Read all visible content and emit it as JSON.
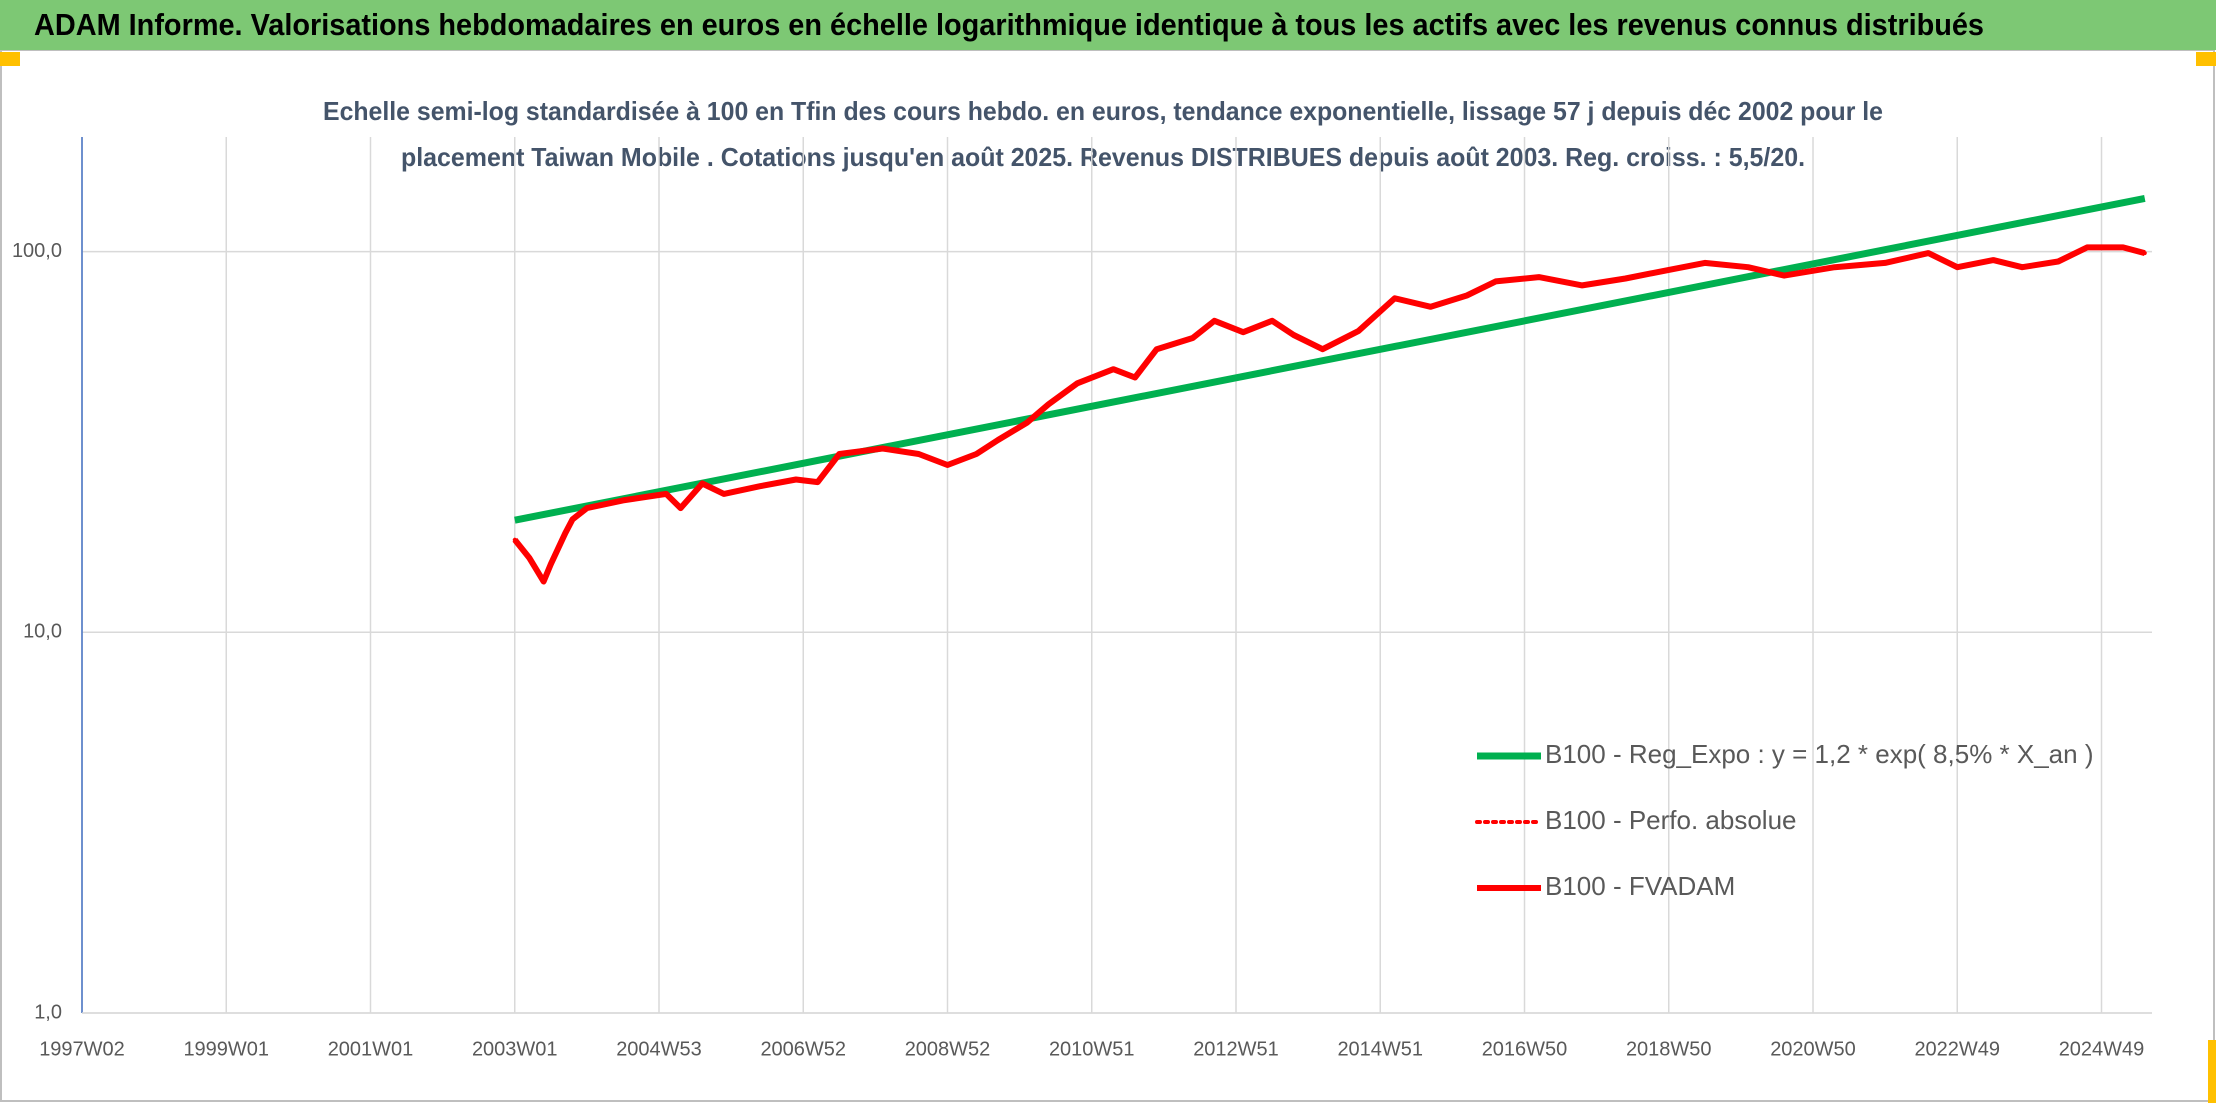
{
  "chart_data": {
    "type": "line",
    "title": "ADAM Informe. Valorisations hebdomadaires en euros en échelle logarithmique identique à tous les actifs avec les revenus connus distribués",
    "subtitle": [
      "Echelle semi-log standardisée à 100 en Tfin des cours hebdo. en euros, tendance exponentielle, lissage 57 j depuis déc 2002 pour le",
      "placement Taiwan Mobile . Cotations jusqu'en août 2025. Revenus DISTRIBUES depuis août 2003. Reg. croiss. : 5,5/20."
    ],
    "log_y": true,
    "grid": true,
    "legend": "bottom-right",
    "xlim": [
      1997,
      2025.7
    ],
    "xticks": [
      {
        "value": 1997,
        "label": "1997W02"
      },
      {
        "value": 1999,
        "label": "1999W01"
      },
      {
        "value": 2001,
        "label": "2001W01"
      },
      {
        "value": 2003,
        "label": "2003W01"
      },
      {
        "value": 2005,
        "label": "2004W53"
      },
      {
        "value": 2007,
        "label": "2006W52"
      },
      {
        "value": 2009,
        "label": "2008W52"
      },
      {
        "value": 2011,
        "label": "2010W51"
      },
      {
        "value": 2013,
        "label": "2012W51"
      },
      {
        "value": 2015,
        "label": "2014W51"
      },
      {
        "value": 2017,
        "label": "2016W50"
      },
      {
        "value": 2019,
        "label": "2018W50"
      },
      {
        "value": 2021,
        "label": "2020W50"
      },
      {
        "value": 2023,
        "label": "2022W49"
      },
      {
        "value": 2025,
        "label": "2024W49"
      }
    ],
    "ylim": [
      1,
      200
    ],
    "yticks": [
      {
        "value": 1,
        "label": "1,0"
      },
      {
        "value": 10,
        "label": "10,0"
      },
      {
        "value": 100,
        "label": "100,0"
      }
    ],
    "series": [
      {
        "name": "B100 - Reg_Expo : y = 1,2 * exp( 8,5% *  X_an )",
        "color": "#00b050",
        "width": 7,
        "dash": "solid",
        "x": [
          2003.0,
          2025.6
        ],
        "values": [
          19.7,
          138
        ]
      },
      {
        "name": "B100 - Perfo. absolue",
        "color": "#ff0000",
        "width": 4,
        "dash": "dotted",
        "x": [
          2003.0,
          2003.2,
          2003.4,
          2003.5,
          2003.7,
          2003.8,
          2004.0,
          2004.5,
          2005.1,
          2005.3,
          2005.6,
          2005.9,
          2006.4,
          2006.9,
          2007.2,
          2007.5,
          2008.1,
          2008.6,
          2009.0,
          2009.4,
          2009.7,
          2010.1,
          2010.4,
          2010.8,
          2011.3,
          2011.6,
          2011.9,
          2012.4,
          2012.7,
          2013.1,
          2013.5,
          2013.8,
          2014.2,
          2014.7,
          2015.2,
          2015.7,
          2016.2,
          2016.6,
          2017.2,
          2017.8,
          2018.4,
          2019.0,
          2019.5,
          2020.1,
          2020.6,
          2021.3,
          2022.0,
          2022.6,
          2023.0,
          2023.5,
          2023.9,
          2024.4,
          2024.8,
          2025.3,
          2025.6
        ],
        "values": [
          17.5,
          15.7,
          13.6,
          15.1,
          18.2,
          19.8,
          21.2,
          22.2,
          23.1,
          21.2,
          24.6,
          23.1,
          24.2,
          25.2,
          24.8,
          29.4,
          30.4,
          29.4,
          27.5,
          29.4,
          32.0,
          35.5,
          39.7,
          45.1,
          49.1,
          46.7,
          55.4,
          59.3,
          65.8,
          61.4,
          65.8,
          60.4,
          55.4,
          61.9,
          75.4,
          71.6,
          76.7,
          83.5,
          85.7,
          81.5,
          85.0,
          89.5,
          93.4,
          91.0,
          86.5,
          91.0,
          93.4,
          99.1,
          91.0,
          95.0,
          91.0,
          94.2,
          102.6,
          102.6,
          99.1
        ]
      },
      {
        "name": "B100 - FVADAM",
        "color": "#ff0000",
        "width": 6,
        "dash": "solid",
        "x": [
          2003.0,
          2003.2,
          2003.4,
          2003.5,
          2003.7,
          2003.8,
          2004.0,
          2004.5,
          2005.1,
          2005.3,
          2005.6,
          2005.9,
          2006.4,
          2006.9,
          2007.2,
          2007.5,
          2008.1,
          2008.6,
          2009.0,
          2009.4,
          2009.7,
          2010.1,
          2010.4,
          2010.8,
          2011.3,
          2011.6,
          2011.9,
          2012.4,
          2012.7,
          2013.1,
          2013.5,
          2013.8,
          2014.2,
          2014.7,
          2015.2,
          2015.7,
          2016.2,
          2016.6,
          2017.2,
          2017.8,
          2018.4,
          2019.0,
          2019.5,
          2020.1,
          2020.6,
          2021.3,
          2022.0,
          2022.6,
          2023.0,
          2023.5,
          2023.9,
          2024.4,
          2024.8,
          2025.3,
          2025.6
        ],
        "values": [
          17.5,
          15.7,
          13.6,
          15.1,
          18.2,
          19.8,
          21.2,
          22.2,
          23.1,
          21.2,
          24.6,
          23.1,
          24.2,
          25.2,
          24.8,
          29.4,
          30.4,
          29.4,
          27.5,
          29.4,
          32.0,
          35.5,
          39.7,
          45.1,
          49.1,
          46.7,
          55.4,
          59.3,
          65.8,
          61.4,
          65.8,
          60.4,
          55.4,
          61.9,
          75.4,
          71.6,
          76.7,
          83.5,
          85.7,
          81.5,
          85.0,
          89.5,
          93.4,
          91.0,
          86.5,
          91.0,
          93.4,
          99.1,
          91.0,
          95.0,
          91.0,
          94.2,
          102.6,
          102.6,
          99.1
        ]
      }
    ]
  }
}
